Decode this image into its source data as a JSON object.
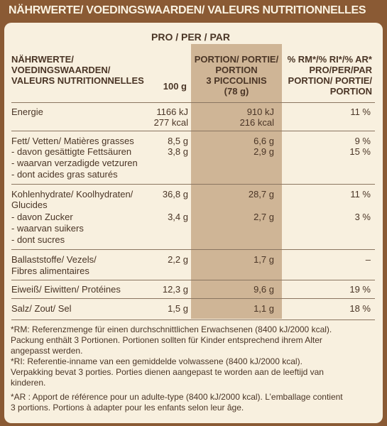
{
  "title": "NÄHRWERTE/ VOEDINGSWAARDEN/ VALEURS NUTRITIONNELLES",
  "per_label": "PRO / PER / PAR",
  "header": {
    "label": [
      "NÄHRWERTE/",
      "VOEDINGSWAARDEN/",
      "VALEURS NUTRITIONNELLES"
    ],
    "col_100g": "100 g",
    "col_portion": [
      "PORTION/ PORTIE/",
      "PORTION",
      "3 PICCOLINIS",
      "(78 g)"
    ],
    "col_ri": [
      "% RM*/% RI*/% AR*",
      "PRO/PER/PAR",
      "PORTION/ PORTIE/",
      "PORTION"
    ]
  },
  "rows": {
    "energy": {
      "label": "Energie",
      "v100_kj": "1166 kJ",
      "v100_kcal": "277 kcal",
      "portion_kj": "910 kJ",
      "portion_kcal": "216 kcal",
      "ri": "11 %"
    },
    "fat": {
      "label": "Fett/ Vetten/ Matières grasses",
      "v100": "8,5 g",
      "portion": "6,6 g",
      "ri": "9 %",
      "sub": [
        "- davon gesättigte Fettsäuren",
        "- waarvan verzadigde vetzuren",
        "- dont acides gras saturés"
      ],
      "sub_v100": "3,8 g",
      "sub_portion": "2,9 g",
      "sub_ri": "15 %"
    },
    "carbs": {
      "label": [
        "Kohlenhydrate/ Koolhydraten/",
        "Glucides"
      ],
      "v100": "36,8 g",
      "portion": "28,7 g",
      "ri": "11 %",
      "sub": [
        "- davon Zucker",
        "- waarvan suikers",
        "- dont sucres"
      ],
      "sub_v100": "3,4 g",
      "sub_portion": "2,7 g",
      "sub_ri": "3 %"
    },
    "fibre": {
      "label": [
        "Ballaststoffe/ Vezels/",
        "Fibres alimentaires"
      ],
      "v100": "2,2 g",
      "portion": "1,7 g",
      "ri": "–"
    },
    "protein": {
      "label": "Eiweiß/ Eiwitten/ Protéines",
      "v100": "12,3 g",
      "portion": "9,6 g",
      "ri": "19 %"
    },
    "salt": {
      "label": "Salz/ Zout/ Sel",
      "v100": "1,5 g",
      "portion": "1,1 g",
      "ri": "18 %"
    }
  },
  "footnotes": [
    "*RM: Referenzmenge für einen durchschnittlichen Erwachsenen (8400 kJ/2000 kcal).",
    "Packung enthält 3 Portionen. Portionen sollten für Kinder entsprechend ihrem Alter",
    "angepasst werden.",
    "*RI: Referentie-inname van een gemiddelde volwassene (8400 kJ/2000 kcal).",
    "Verpakking bevat 3 porties. Porties dienen aangepast te worden aan de leeftijd van",
    "kinderen.",
    "*AR : Apport de référence pour un adulte-type (8400 kJ/2000 kcal). L’emballage contient",
    "3 portions. Portions à adapter pour les enfants selon leur âge."
  ],
  "colors": {
    "border": "#8a5a34",
    "panel": "#f8f0df",
    "portion_column": "#cfb596",
    "text": "#4a3526"
  }
}
